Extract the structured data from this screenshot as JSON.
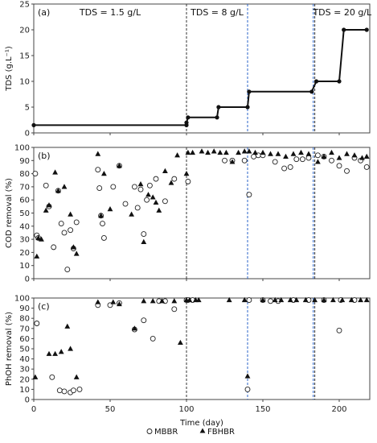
{
  "chart_data": {
    "type": "scatter",
    "x_label": "Time (day)",
    "x_ticks": [
      0,
      50,
      100,
      150,
      200
    ],
    "xlim": [
      0,
      220
    ],
    "colors": {
      "vline_black": "#333333",
      "vline_blue": "#2a63c9",
      "line": "#111111"
    },
    "phase_lines": [
      {
        "x": 100,
        "color": "black"
      },
      {
        "x": 140,
        "color": "blue"
      },
      {
        "x": 183,
        "color": "blue"
      },
      {
        "x": 184,
        "color": "black"
      }
    ],
    "panels": [
      {
        "label": "(a)",
        "ylabel": "TDS (g.L⁻¹)",
        "ylim": [
          0,
          25
        ],
        "yticks": [
          0,
          5,
          10,
          15,
          20,
          25
        ],
        "phase_labels": [
          {
            "text": "TDS = 1.5 g/L",
            "x": 50
          },
          {
            "text": "TDS = 8 g/L",
            "x": 120
          },
          {
            "text": "TDS = 20 g/L",
            "x": 202
          }
        ],
        "series": [
          {
            "type": "step",
            "x": [
              0,
              100,
              100,
              101,
              120,
              121,
              140,
              141,
              182,
              185,
              200,
              203,
              218
            ],
            "y": [
              1.5,
              1.5,
              2,
              3,
              3,
              5,
              5,
              8,
              8,
              10,
              10,
              20,
              20
            ]
          }
        ]
      },
      {
        "label": "(b)",
        "ylabel": "COD removal (%)",
        "ylim": [
          0,
          100
        ],
        "yticks": [
          0,
          10,
          20,
          30,
          40,
          50,
          60,
          70,
          80,
          90,
          100
        ],
        "series": [
          {
            "name": "MBBR",
            "x": [
              1,
              2,
              3,
              8,
              10,
              13,
              16,
              18,
              20,
              22,
              24,
              26,
              28,
              42,
              43,
              44,
              45,
              46,
              52,
              56,
              60,
              66,
              68,
              70,
              72,
              74,
              76,
              80,
              86,
              92,
              101,
              125,
              130,
              138,
              141,
              144,
              147,
              150,
              158,
              164,
              168,
              172,
              176,
              180,
              186,
              190,
              195,
              200,
              205,
              210,
              214,
              218
            ],
            "y": [
              80,
              33,
              31,
              71,
              55,
              24,
              67,
              42,
              35,
              7,
              37,
              23,
              43,
              83,
              69,
              48,
              42,
              31,
              70,
              86,
              57,
              70,
              54,
              68,
              34,
              60,
              71,
              76,
              59,
              76,
              74,
              90,
              90,
              90,
              64,
              93,
              94,
              94,
              89,
              84,
              85,
              91,
              91,
              92,
              94,
              93,
              90,
              86,
              82,
              92,
              90,
              85
            ]
          },
          {
            "name": "FBHBR",
            "x": [
              2,
              3,
              5,
              8,
              10,
              14,
              16,
              20,
              24,
              26,
              28,
              42,
              44,
              46,
              50,
              56,
              64,
              70,
              72,
              75,
              78,
              80,
              82,
              86,
              90,
              94,
              100,
              101,
              104,
              110,
              114,
              118,
              122,
              126,
              130,
              134,
              138,
              141,
              145,
              150,
              155,
              160,
              165,
              170,
              175,
              180,
              186,
              190,
              195,
              200,
              205,
              210,
              215,
              218
            ],
            "y": [
              17,
              31,
              30,
              52,
              56,
              81,
              67,
              70,
              49,
              24,
              19,
              95,
              48,
              80,
              53,
              86,
              49,
              72,
              28,
              64,
              62,
              58,
              52,
              82,
              73,
              94,
              80,
              96,
              96,
              97,
              96,
              97,
              96,
              96,
              89,
              96,
              97,
              97,
              96,
              96,
              95,
              95,
              93,
              95,
              96,
              95,
              89,
              93,
              96,
              92,
              95,
              94,
              92,
              93
            ]
          }
        ]
      },
      {
        "label": "(c)",
        "ylabel": "PhOH removal (%)",
        "ylim": [
          0,
          100
        ],
        "yticks": [
          0,
          10,
          20,
          30,
          40,
          50,
          60,
          70,
          80,
          90,
          100
        ],
        "series": [
          {
            "name": "MBBR",
            "x": [
              2,
              12,
              17,
              20,
              24,
              26,
              30,
              42,
              50,
              56,
              66,
              72,
              78,
              82,
              86,
              92,
              100,
              101,
              104,
              140,
              141,
              150,
              155,
              160,
              170,
              180,
              190,
              200,
              201,
              210
            ],
            "y": [
              75,
              22,
              9,
              8,
              7,
              9,
              10,
              93,
              93,
              95,
              69,
              78,
              60,
              97,
              97,
              89,
              98,
              98,
              98,
              10,
              98,
              98,
              97,
              97,
              98,
              98,
              98,
              68,
              98,
              98
            ]
          },
          {
            "name": "FBHBR",
            "x": [
              1,
              10,
              14,
              18,
              22,
              24,
              28,
              42,
              52,
              56,
              66,
              72,
              78,
              84,
              92,
              96,
              100,
              102,
              106,
              108,
              128,
              138,
              140,
              150,
              158,
              162,
              168,
              172,
              178,
              184,
              190,
              196,
              202,
              208,
              214,
              218
            ],
            "y": [
              22,
              45,
              45,
              47,
              72,
              50,
              22,
              96,
              96,
              94,
              70,
              97,
              97,
              97,
              97,
              56,
              98,
              98,
              98,
              98,
              98,
              98,
              23,
              98,
              98,
              98,
              98,
              98,
              98,
              98,
              98,
              98,
              98,
              98,
              98,
              98
            ]
          }
        ]
      }
    ],
    "legend": [
      {
        "name": "MBBR",
        "marker": "circle-open"
      },
      {
        "name": "FBHBR",
        "marker": "triangle-filled"
      }
    ]
  }
}
